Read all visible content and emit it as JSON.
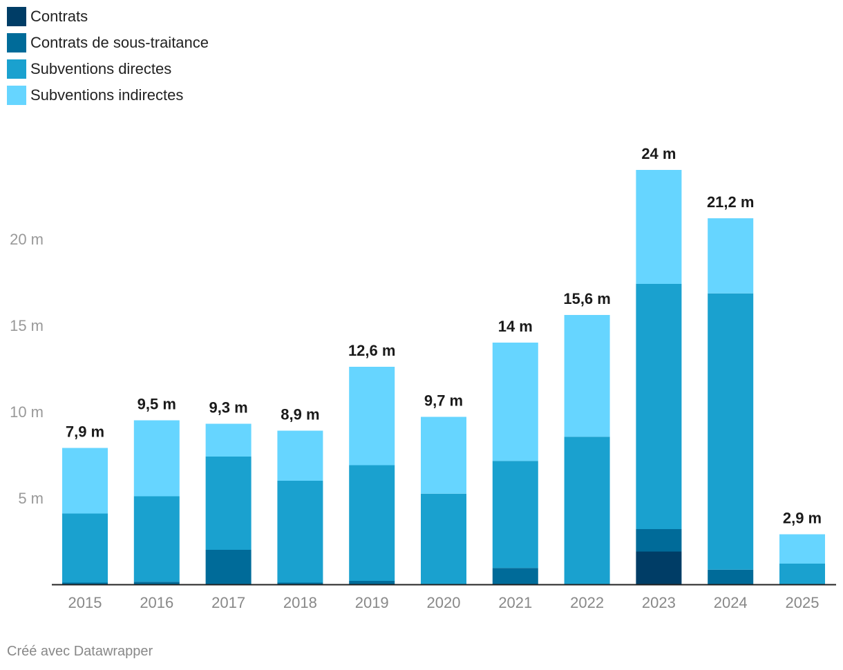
{
  "chart_data": {
    "type": "bar",
    "stacked": true,
    "categories": [
      "2015",
      "2016",
      "2017",
      "2018",
      "2019",
      "2020",
      "2021",
      "2022",
      "2023",
      "2024",
      "2025"
    ],
    "series": [
      {
        "name": "Contrats",
        "color": "#003d66",
        "values": [
          0,
          0,
          0,
          0,
          0,
          0,
          0,
          0,
          1.9,
          0,
          0
        ]
      },
      {
        "name": "Contrats de sous-traitance",
        "color": "#006b99",
        "values": [
          0.1,
          0.15,
          2.0,
          0.1,
          0.2,
          0,
          0.95,
          0,
          1.3,
          0.85,
          0
        ]
      },
      {
        "name": "Subventions directes",
        "color": "#1aa1cf",
        "values": [
          4.0,
          4.95,
          5.4,
          5.9,
          6.7,
          5.25,
          6.2,
          8.55,
          14.2,
          16.0,
          1.2
        ]
      },
      {
        "name": "Subventions indirectes",
        "color": "#66d5ff",
        "values": [
          3.8,
          4.4,
          1.9,
          2.9,
          5.7,
          4.45,
          6.85,
          7.05,
          6.6,
          4.35,
          1.7
        ]
      }
    ],
    "total_labels": [
      "7,9 m",
      "9,5 m",
      "9,3 m",
      "8,9 m",
      "12,6 m",
      "9,7 m",
      "14 m",
      "15,6 m",
      "24 m",
      "21,2 m",
      "2,9 m"
    ],
    "totals": [
      7.9,
      9.5,
      9.3,
      8.9,
      12.6,
      9.7,
      14,
      15.6,
      24,
      21.2,
      2.9
    ],
    "y_ticks": [
      {
        "value": 5,
        "label": "5 m"
      },
      {
        "value": 10,
        "label": "10 m"
      },
      {
        "value": 15,
        "label": "15 m"
      },
      {
        "value": 20,
        "label": "20 m"
      }
    ],
    "ylim": [
      0,
      24
    ],
    "grid": false,
    "legend_position": "top-left",
    "title": "",
    "xlabel": "",
    "ylabel": ""
  },
  "footer": {
    "credit": "Créé avec Datawrapper"
  }
}
